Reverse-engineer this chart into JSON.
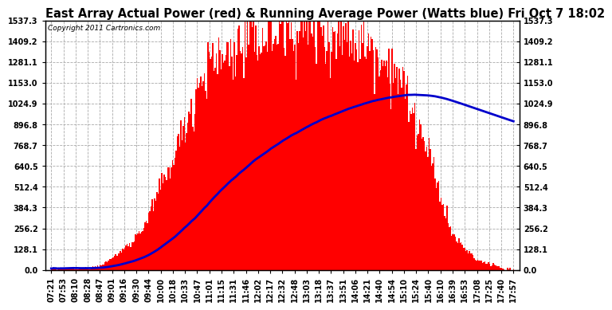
{
  "title": "East Array Actual Power (red) & Running Average Power (Watts blue) Fri Oct 7 18:02",
  "copyright": "Copyright 2011 Cartronics.com",
  "yticks": [
    0.0,
    128.1,
    256.2,
    384.3,
    512.4,
    640.5,
    768.7,
    896.8,
    1024.9,
    1153.0,
    1281.1,
    1409.2,
    1537.3
  ],
  "ymax": 1537.3,
  "bar_color": "#FF0000",
  "line_color": "#0000CC",
  "bg_color": "#FFFFFF",
  "grid_color": "#AAAAAA",
  "title_fontsize": 10.5,
  "copyright_fontsize": 6.5,
  "tick_fontsize": 7,
  "xtick_labels": [
    "07:21",
    "07:53",
    "08:10",
    "08:28",
    "08:47",
    "09:01",
    "09:16",
    "09:30",
    "09:44",
    "10:00",
    "10:18",
    "10:33",
    "10:47",
    "11:01",
    "11:15",
    "11:31",
    "11:46",
    "12:02",
    "12:17",
    "12:32",
    "12:48",
    "13:03",
    "13:18",
    "13:37",
    "13:51",
    "14:06",
    "14:21",
    "14:40",
    "14:54",
    "15:10",
    "15:24",
    "15:40",
    "16:10",
    "16:39",
    "16:53",
    "17:08",
    "17:25",
    "17:40",
    "17:57"
  ],
  "n_dense": 390
}
